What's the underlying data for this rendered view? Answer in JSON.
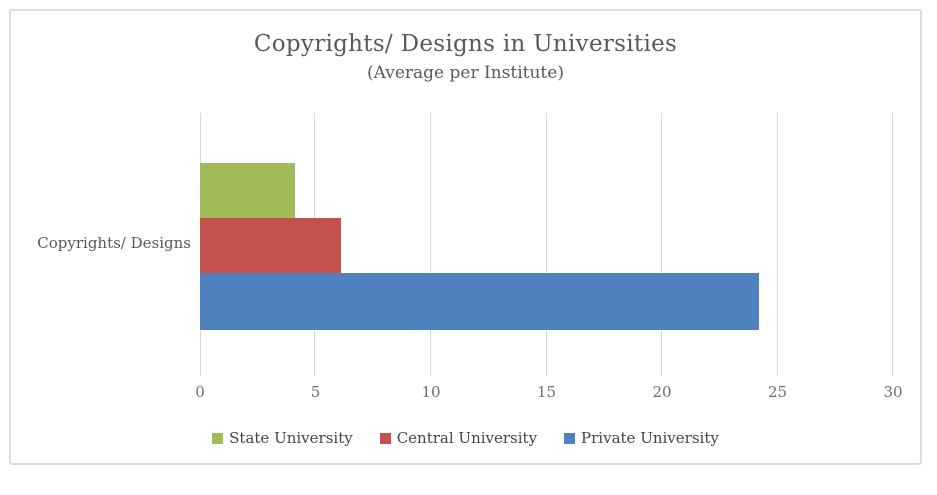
{
  "chart": {
    "title": "Copyrights/ Designs in Universities",
    "subtitle": "(Average per Institute)",
    "category_label": "Copyrights/ Designs",
    "colors": {
      "state_university": "#a0bb58",
      "central_university": "#c5514f",
      "private_university": "#4f82be",
      "gridline": "#d9d9d9",
      "title_text": "#595959",
      "tick_text": "#6e6e6e",
      "legend_text": "#454545"
    }
  },
  "chart_data": {
    "type": "bar",
    "orientation": "horizontal",
    "title": "Copyrights/ Designs in Universities",
    "subtitle": "(Average per Institute)",
    "categories": [
      "Copyrights/ Designs"
    ],
    "series": [
      {
        "name": "State University",
        "values": [
          4.1
        ],
        "color": "#a0bb58"
      },
      {
        "name": "Central University",
        "values": [
          6.1
        ],
        "color": "#c5514f"
      },
      {
        "name": "Private University",
        "values": [
          24.2
        ],
        "color": "#4f82be"
      }
    ],
    "xlabel": "",
    "ylabel": "",
    "xlim": [
      0,
      30
    ],
    "x_tick_interval": 5,
    "x_ticks": [
      "0",
      "5",
      "10",
      "15",
      "20",
      "25",
      "30"
    ],
    "grid": true,
    "legend_position": "bottom"
  }
}
